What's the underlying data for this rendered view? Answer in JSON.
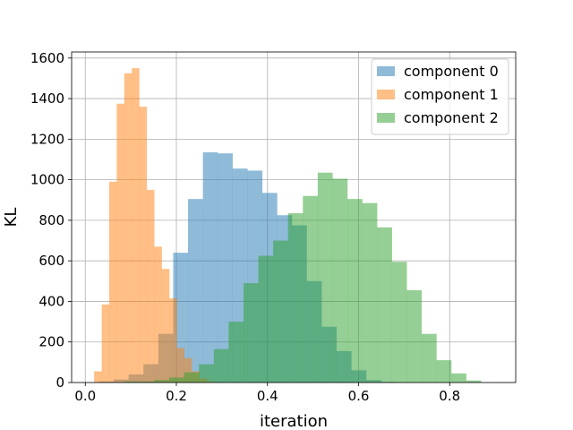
{
  "chart_data": {
    "type": "histogram",
    "title": "",
    "xlabel": "iteration",
    "ylabel": "KL",
    "xlim": [
      -0.03,
      0.945
    ],
    "ylim": [
      0,
      1630
    ],
    "x_ticks": [
      "0.0",
      "0.2",
      "0.4",
      "0.6",
      "0.8"
    ],
    "x_tick_values": [
      0.0,
      0.2,
      0.4,
      0.6,
      0.8
    ],
    "y_ticks": [
      "0",
      "200",
      "400",
      "600",
      "800",
      "1000",
      "1200",
      "1400",
      "1600"
    ],
    "y_tick_values": [
      0,
      200,
      400,
      600,
      800,
      1000,
      1200,
      1400,
      1600
    ],
    "grid": true,
    "legend_position": "top-right",
    "series": [
      {
        "name": "component 0",
        "color": "#1f77b4",
        "opacity": 0.5,
        "bin_start": 0.03,
        "bin_width": 0.0326,
        "values": [
          5,
          15,
          40,
          90,
          240,
          640,
          905,
          1135,
          1130,
          1055,
          1045,
          935,
          825,
          775,
          500,
          275,
          155,
          60,
          12,
          3
        ]
      },
      {
        "name": "component 1",
        "color": "#ff7f0e",
        "opacity": 0.5,
        "bin_start": 0.0195,
        "bin_width": 0.0165,
        "values": [
          55,
          385,
          990,
          1375,
          1525,
          1550,
          1360,
          950,
          670,
          560,
          415,
          170,
          120,
          55,
          20,
          5
        ]
      },
      {
        "name": "component 2",
        "color": "#2ca02c",
        "opacity": 0.5,
        "bin_start": 0.0865,
        "bin_width": 0.0326,
        "values": [
          5,
          5,
          12,
          25,
          50,
          90,
          165,
          300,
          490,
          625,
          700,
          835,
          920,
          1035,
          1005,
          905,
          885,
          765,
          595,
          455,
          240,
          110,
          45,
          10
        ]
      }
    ]
  }
}
